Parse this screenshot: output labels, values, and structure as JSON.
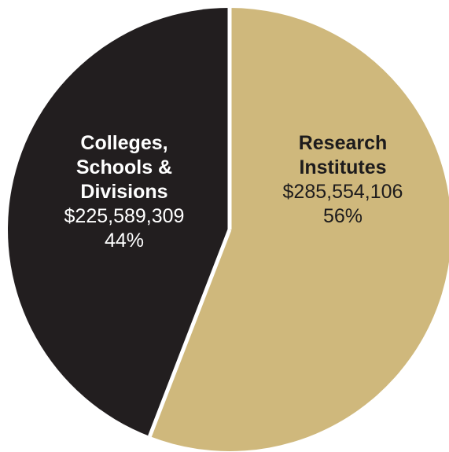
{
  "chart_data": {
    "type": "pie",
    "slices": [
      {
        "label_lines": [
          "Research",
          "Institutes"
        ],
        "value": 285554106,
        "value_text": "$285,554,106",
        "percent_text": "56%",
        "color": "#cfb87c",
        "text_color": "#1d1b1c"
      },
      {
        "label_lines": [
          "Colleges,",
          "Schools &",
          "Divisions"
        ],
        "value": 225589309,
        "value_text": "$225,589,309",
        "percent_text": "44%",
        "color": "#221e1f",
        "text_color": "#ffffff"
      }
    ],
    "start_at": "top",
    "direction": "clockwise",
    "separator_color": "#ffffff"
  }
}
